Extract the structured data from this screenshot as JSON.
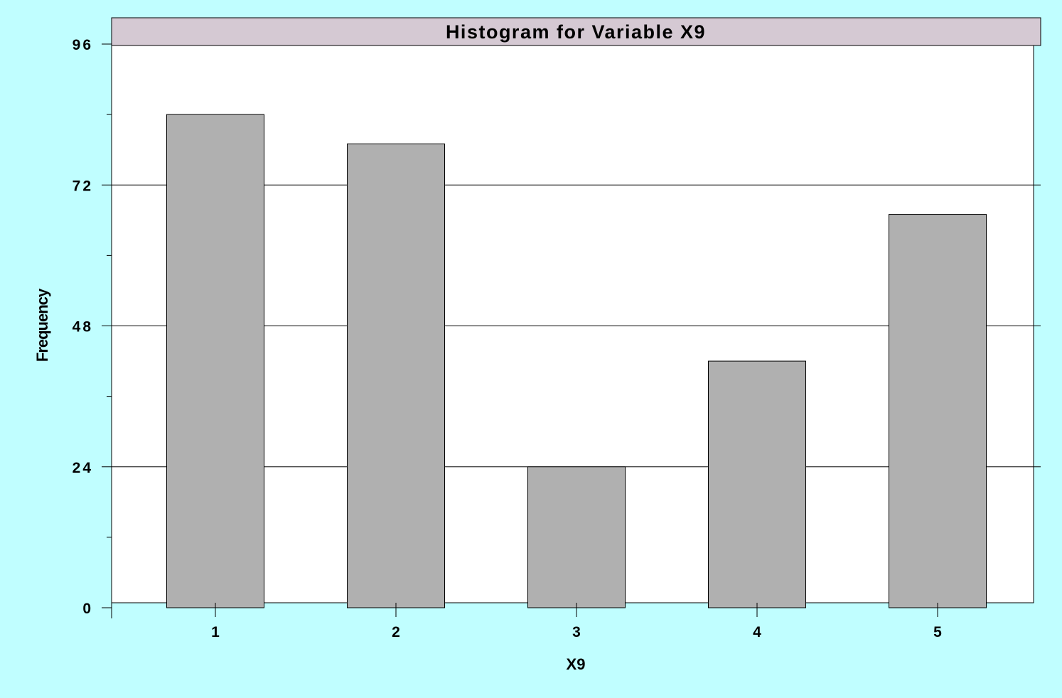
{
  "colors": {
    "background": "#c0feff",
    "plot_area": "#ffffff",
    "title_bar": "#d5c9d3",
    "bar_fill": "#b0b0b0",
    "bar_stroke": "#000000",
    "gridline": "#000000"
  },
  "chart_data": {
    "type": "bar",
    "title": "Histogram for Variable X9",
    "xlabel": "X9",
    "ylabel": "Frequency",
    "categories": [
      "1",
      "2",
      "3",
      "4",
      "5"
    ],
    "values": [
      84,
      79,
      24,
      42,
      67
    ],
    "ylim": [
      0,
      96
    ],
    "yticks": [
      0,
      24,
      48,
      72,
      96
    ],
    "yticks_minor": [
      12,
      36,
      60,
      84
    ],
    "grid": true
  }
}
